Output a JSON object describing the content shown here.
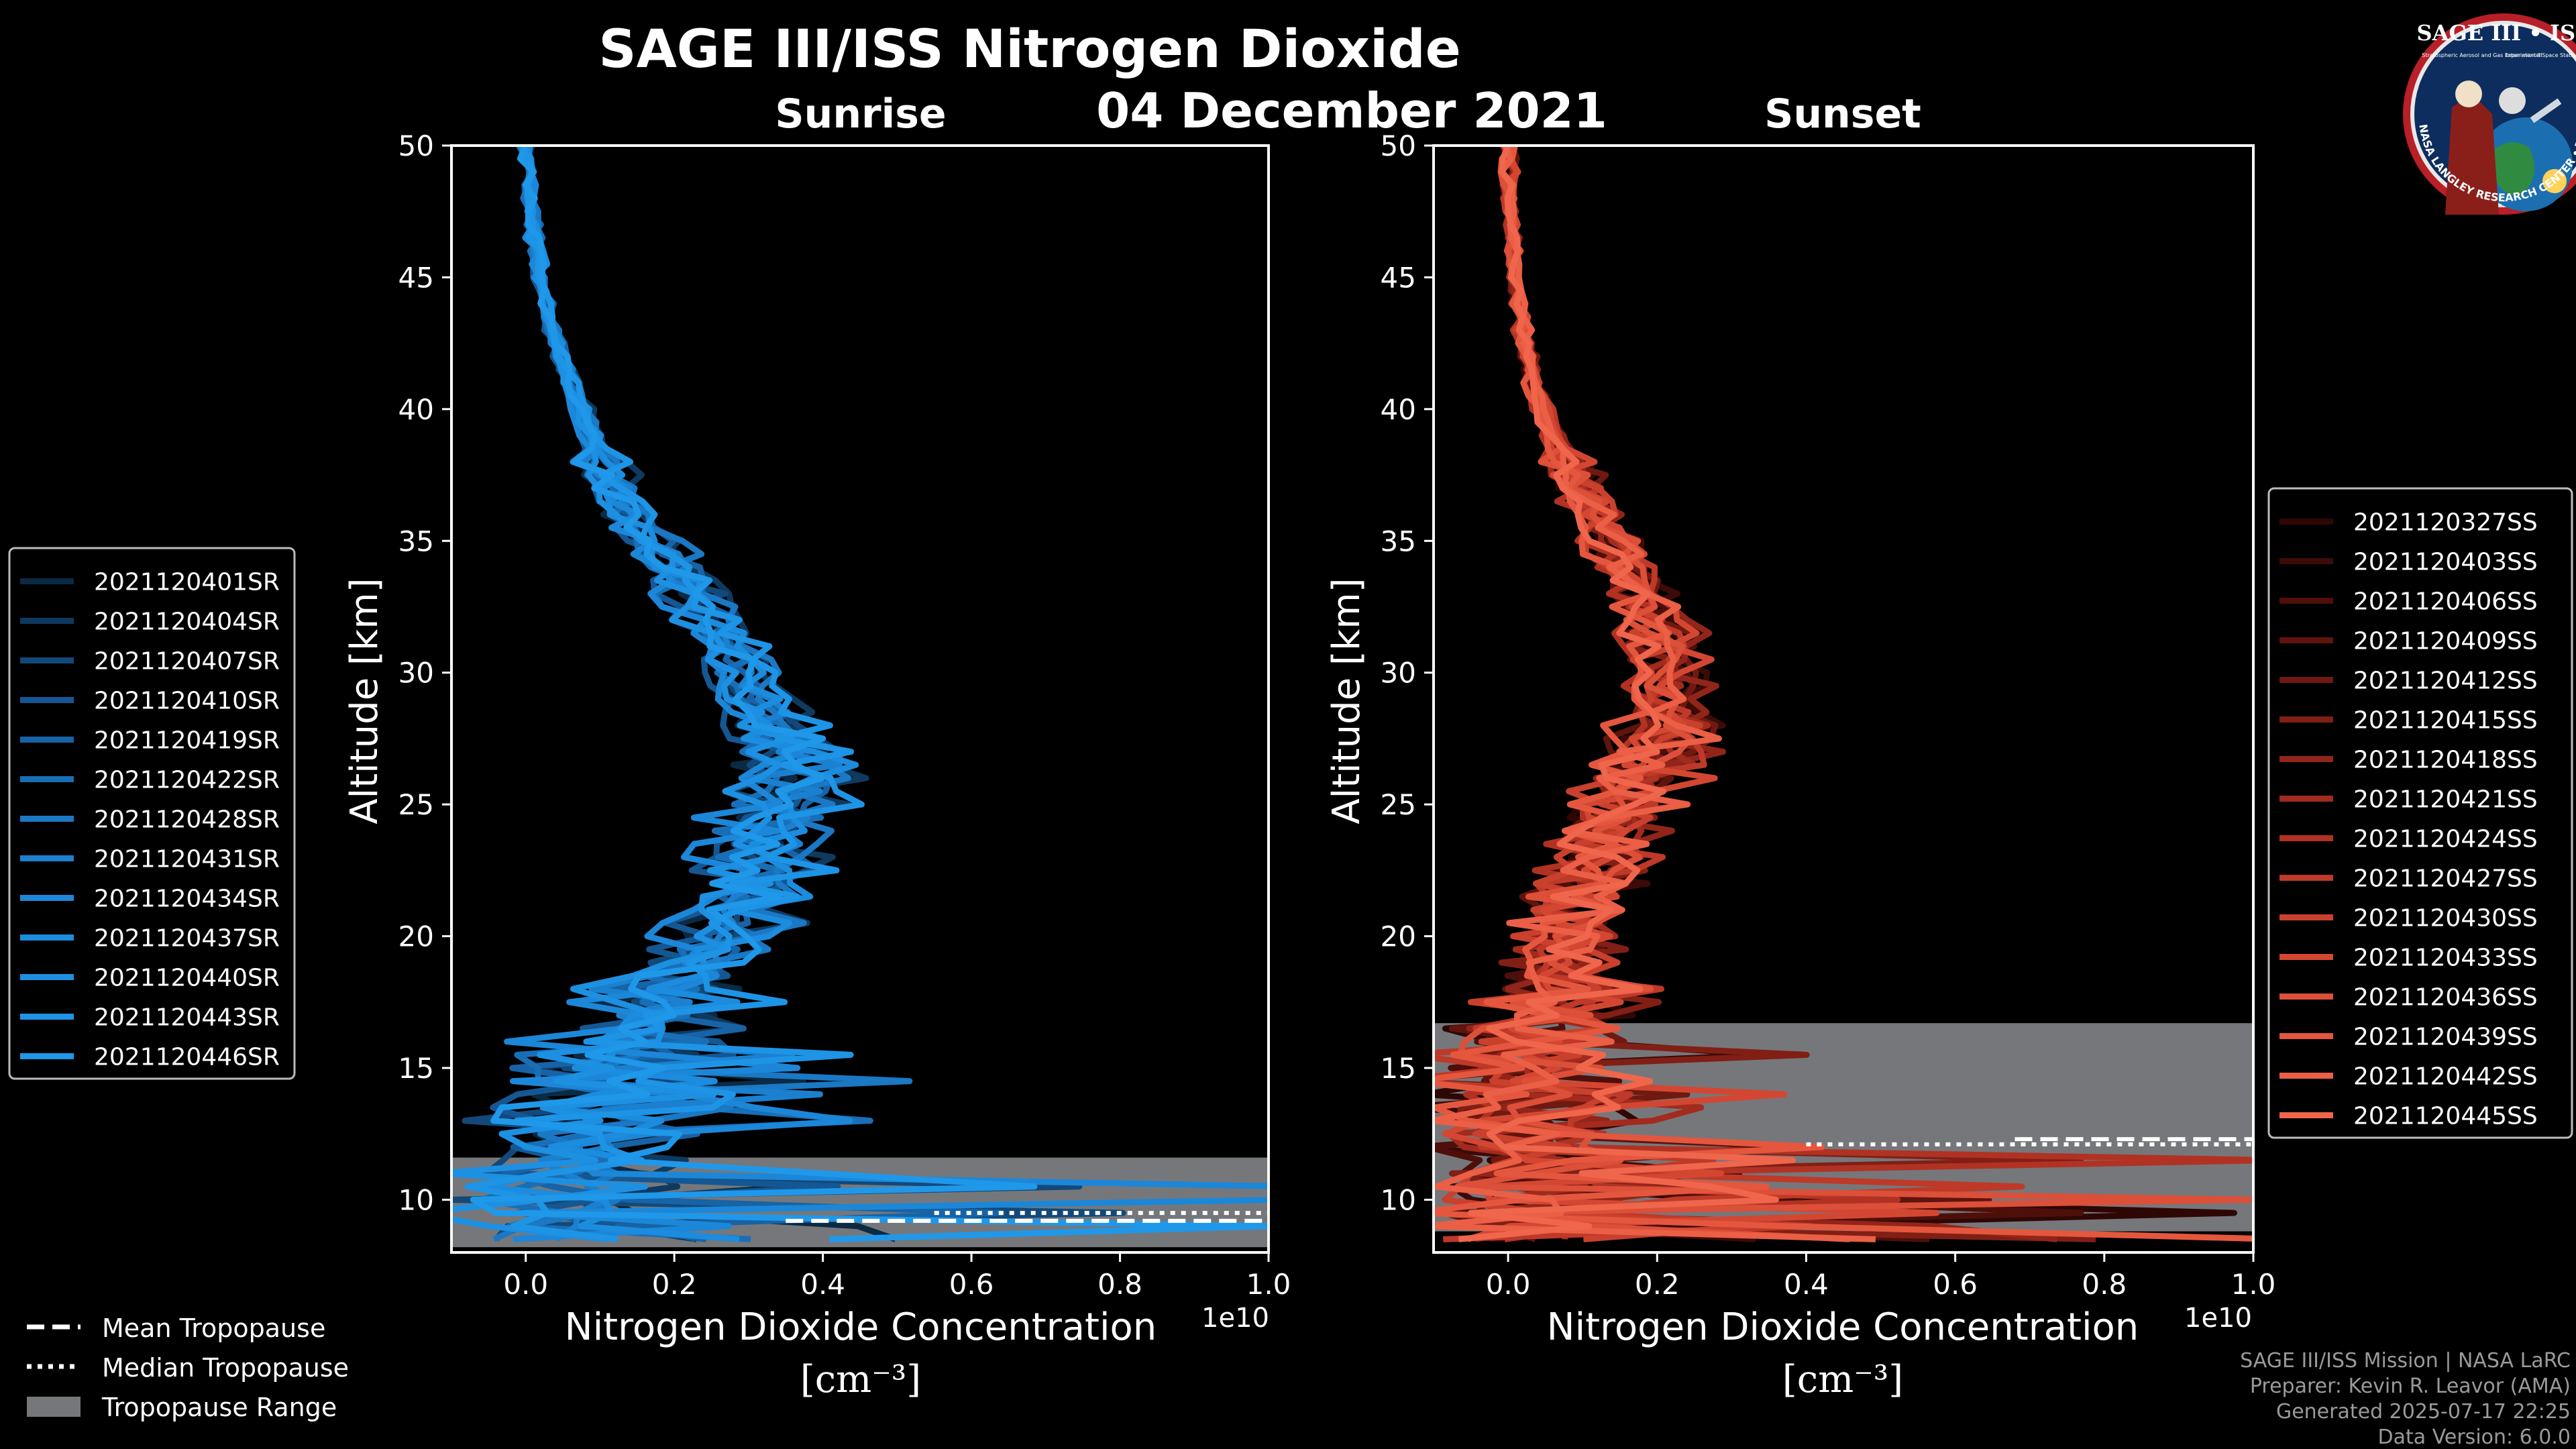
{
  "title": "SAGE III/ISS Nitrogen Dioxide",
  "date": "04 December 2021",
  "logo": {
    "name": "SAGE III • ISS",
    "ring_text": "BALL • NASA LANGLEY RESEARCH CENTER • TAS-I • ESA",
    "sub_left": "Stratospheric Aerosol and Gas Experiment III",
    "sub_right": "International Space Station"
  },
  "footer": [
    "SAGE III/ISS Mission | NASA LaRC",
    "Preparer: Kevin R. Leavor (AMA)",
    "Generated 2025-07-17 22:25",
    "Data Version: 6.0.0"
  ],
  "tropopause_legend": [
    {
      "style": "dashed",
      "label": "Mean Tropopause"
    },
    {
      "style": "dotted",
      "label": "Median Tropopause"
    },
    {
      "style": "range",
      "label": "Tropopause Range"
    }
  ],
  "colors": {
    "background": "#000000",
    "text": "#ffffff",
    "range": "#76777b",
    "legend_edge": "#bbbbbb",
    "sunrise": [
      "#0b2a44",
      "#0f3a60",
      "#12497a",
      "#155793",
      "#1763a6",
      "#186fb7",
      "#1a78c4",
      "#1b80cf",
      "#1c87d8",
      "#1c8cde",
      "#1d90e2",
      "#1e94e6",
      "#1f98ea"
    ],
    "sunset": [
      "#2e0705",
      "#3d0b07",
      "#4e0f0a",
      "#5f140d",
      "#701911",
      "#811f15",
      "#922519",
      "#a22b1e",
      "#b13223",
      "#be3928",
      "#c9402d",
      "#d34732",
      "#dc4f38",
      "#e4573e",
      "#ea5f45",
      "#ef664c"
    ]
  },
  "chart_data": [
    {
      "type": "line",
      "title": "Sunrise",
      "xlabel": "Nitrogen Dioxide Concentration",
      "xlabel_unit": "[cm⁻³]",
      "ylabel": "Altitude [km]",
      "x_offset_label": "1e10",
      "xlim": [
        -0.1,
        1.0
      ],
      "ylim": [
        8,
        50
      ],
      "xticks": [
        0.0,
        0.2,
        0.4,
        0.6,
        0.8,
        1.0
      ],
      "xtick_labels": [
        "0.0",
        "0.2",
        "0.4",
        "0.6",
        "0.8",
        "1.0"
      ],
      "yticks": [
        10,
        15,
        20,
        25,
        30,
        35,
        40,
        45,
        50
      ],
      "ytick_labels": [
        "10",
        "15",
        "20",
        "25",
        "30",
        "35",
        "40",
        "45",
        "50"
      ],
      "series_names": [
        "2021120401SR",
        "2021120404SR",
        "2021120407SR",
        "2021120410SR",
        "2021120419SR",
        "2021120422SR",
        "2021120428SR",
        "2021120431SR",
        "2021120434SR",
        "2021120437SR",
        "2021120440SR",
        "2021120443SR",
        "2021120446SR"
      ],
      "mean_profile": {
        "alt": [
          50,
          47,
          45,
          43,
          41,
          39,
          37,
          35,
          33,
          31,
          29,
          27,
          25,
          23,
          21,
          19,
          17,
          15,
          13,
          11,
          9
        ],
        "conc": [
          0.0,
          0.01,
          0.02,
          0.04,
          0.06,
          0.09,
          0.12,
          0.17,
          0.23,
          0.28,
          0.32,
          0.36,
          0.36,
          0.33,
          0.3,
          0.24,
          0.18,
          0.12,
          0.08,
          0.05,
          0.03
        ]
      },
      "tropopause": {
        "range": [
          8.2,
          11.6
        ],
        "mean": 9.2,
        "median": 9.5,
        "mean_x_start": 0.35,
        "median_x_start": 0.55
      },
      "legend_position": "center-left outside"
    },
    {
      "type": "line",
      "title": "Sunset",
      "xlabel": "Nitrogen Dioxide Concentration",
      "xlabel_unit": "[cm⁻³]",
      "ylabel": "Altitude [km]",
      "x_offset_label": "1e10",
      "xlim": [
        -0.1,
        1.0
      ],
      "ylim": [
        8,
        50
      ],
      "xticks": [
        0.0,
        0.2,
        0.4,
        0.6,
        0.8,
        1.0
      ],
      "xtick_labels": [
        "0.0",
        "0.2",
        "0.4",
        "0.6",
        "0.8",
        "1.0"
      ],
      "yticks": [
        10,
        15,
        20,
        25,
        30,
        35,
        40,
        45,
        50
      ],
      "ytick_labels": [
        "10",
        "15",
        "20",
        "25",
        "30",
        "35",
        "40",
        "45",
        "50"
      ],
      "series_names": [
        "2021120327SS",
        "2021120403SS",
        "2021120406SS",
        "2021120409SS",
        "2021120412SS",
        "2021120415SS",
        "2021120418SS",
        "2021120421SS",
        "2021120424SS",
        "2021120427SS",
        "2021120430SS",
        "2021120433SS",
        "2021120436SS",
        "2021120439SS",
        "2021120442SS",
        "2021120445SS"
      ],
      "mean_profile": {
        "alt": [
          50,
          47,
          45,
          43,
          41,
          39,
          37,
          35,
          33,
          31,
          29,
          27,
          25,
          23,
          21,
          19,
          17,
          15,
          13,
          11,
          9
        ],
        "conc": [
          0.0,
          0.005,
          0.01,
          0.02,
          0.035,
          0.06,
          0.1,
          0.14,
          0.18,
          0.21,
          0.22,
          0.2,
          0.16,
          0.12,
          0.09,
          0.07,
          0.05,
          0.04,
          0.03,
          0.03,
          0.03
        ]
      },
      "tropopause": {
        "range": [
          8.8,
          16.7
        ],
        "mean": 12.3,
        "median": 12.1,
        "mean_x_start": 0.68,
        "median_x_start": 0.4
      },
      "legend_position": "center-right outside"
    }
  ]
}
